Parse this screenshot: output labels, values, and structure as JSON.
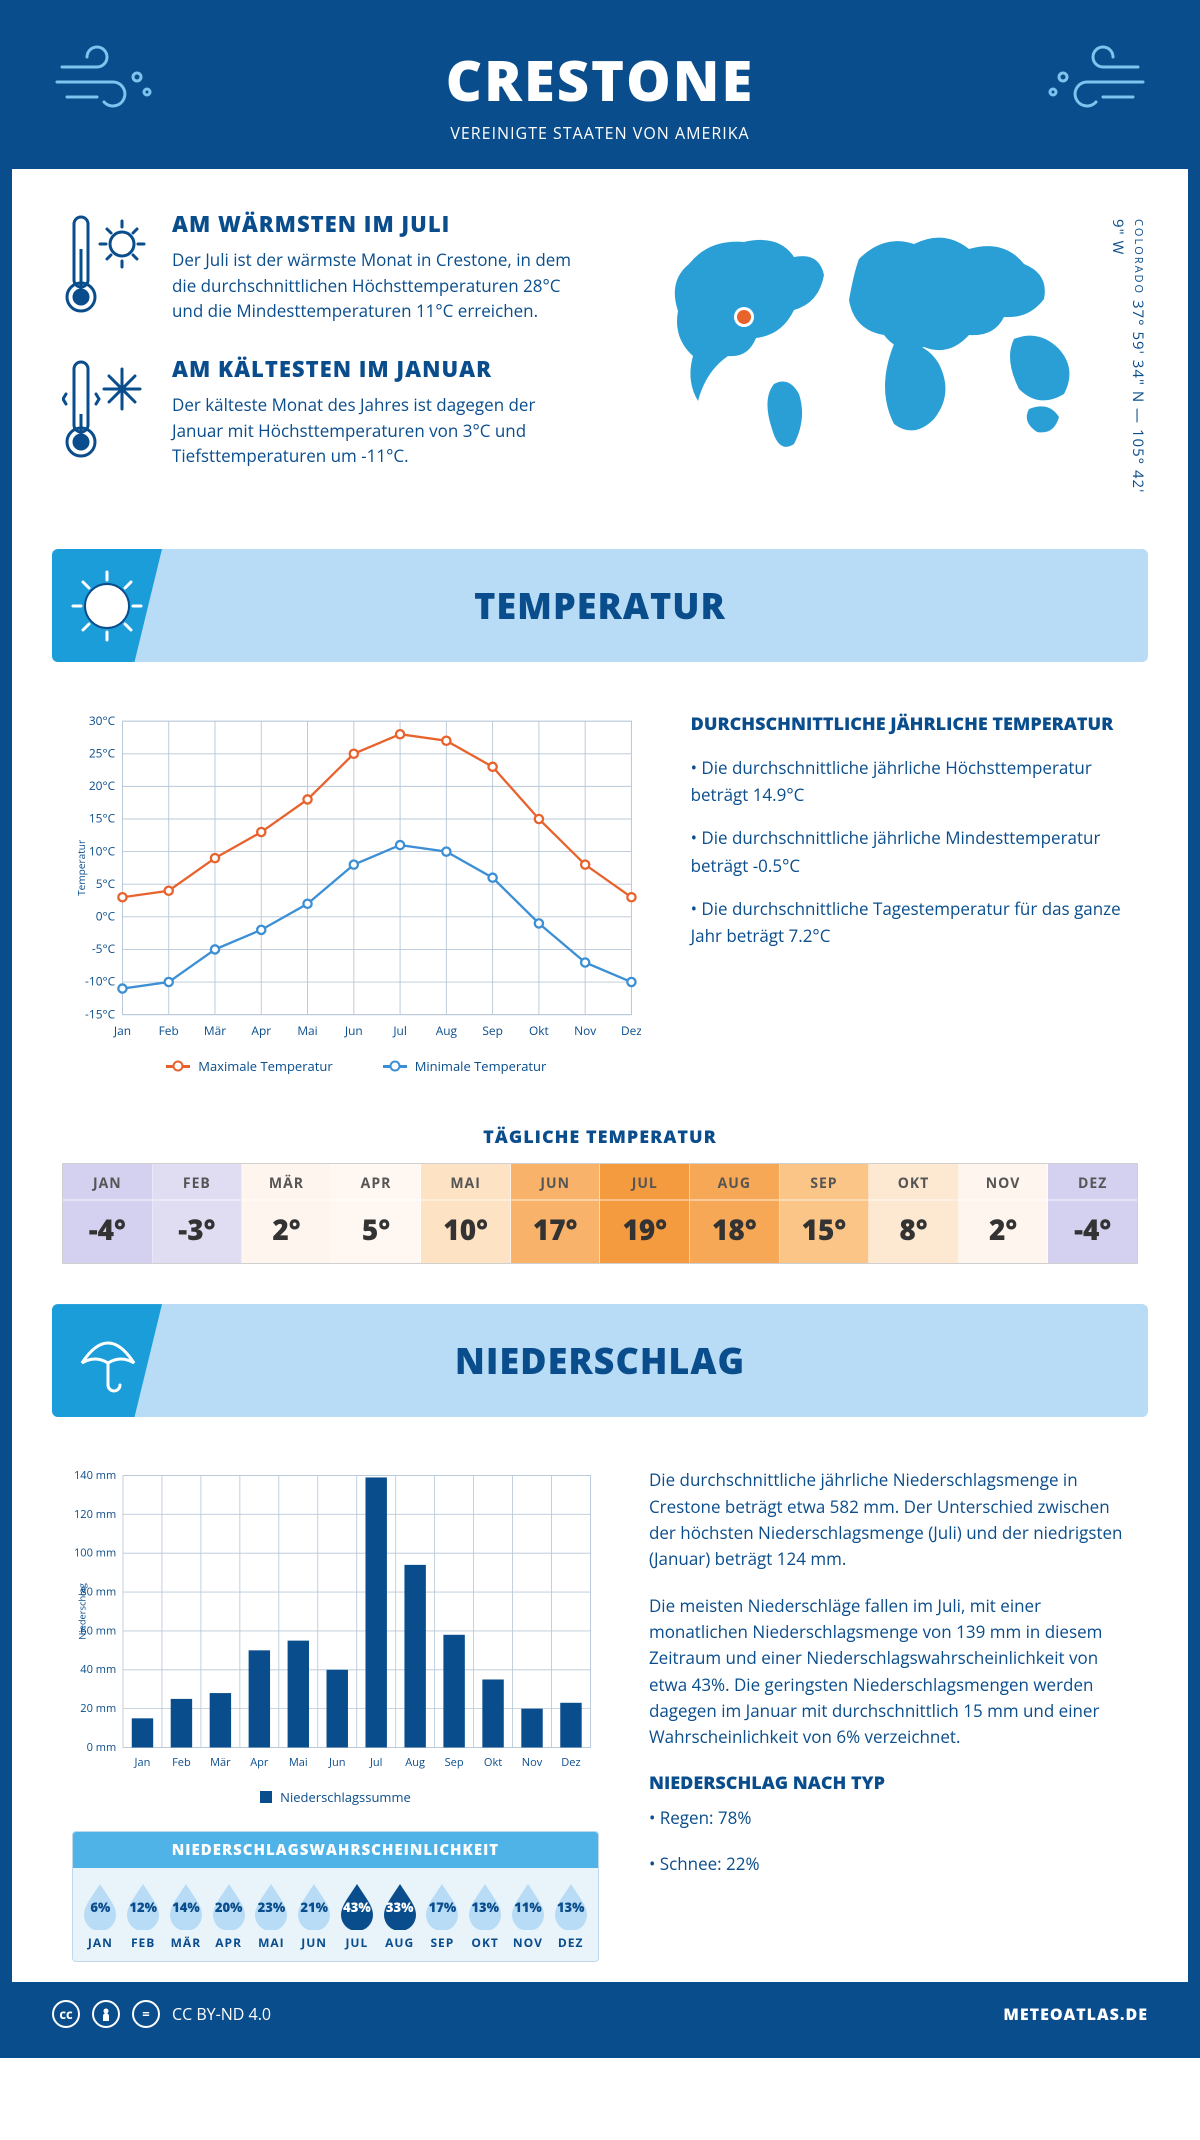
{
  "header": {
    "title": "CRESTONE",
    "subtitle": "VEREINIGTE STAATEN VON AMERIKA"
  },
  "coords": {
    "text": "37° 59' 34\" N — 105° 42' 9\" W",
    "state": "COLORADO"
  },
  "facts": {
    "warm": {
      "title": "AM WÄRMSTEN IM JULI",
      "body": "Der Juli ist der wärmste Monat in Crestone, in dem die durchschnittlichen Höchsttemperaturen 28°C und die Mindesttemperaturen 11°C erreichen."
    },
    "cold": {
      "title": "AM KÄLTESTEN IM JANUAR",
      "body": "Der kälteste Monat des Jahres ist dagegen der Januar mit Höchsttemperaturen von 3°C und Tiefsttemperaturen um -11°C."
    }
  },
  "sections": {
    "temp_title": "TEMPERATUR",
    "precip_title": "NIEDERSCHLAG"
  },
  "months": [
    "Jan",
    "Feb",
    "Mär",
    "Apr",
    "Mai",
    "Jun",
    "Jul",
    "Aug",
    "Sep",
    "Okt",
    "Nov",
    "Dez"
  ],
  "months_upper": [
    "JAN",
    "FEB",
    "MÄR",
    "APR",
    "MAI",
    "JUN",
    "JUL",
    "AUG",
    "SEP",
    "OKT",
    "NOV",
    "DEZ"
  ],
  "temp_chart": {
    "type": "line",
    "ylabel": "Temperatur",
    "ylim": [
      -15,
      30
    ],
    "ytick_step": 5,
    "series": {
      "max": {
        "label": "Maximale Temperatur",
        "color": "#e8622c",
        "values": [
          3,
          4,
          9,
          13,
          18,
          25,
          28,
          27,
          23,
          15,
          8,
          3
        ]
      },
      "min": {
        "label": "Minimale Temperatur",
        "color": "#3c8fd4",
        "values": [
          -11,
          -10,
          -5,
          -2,
          2,
          8,
          11,
          10,
          6,
          -1,
          -7,
          -10
        ]
      }
    },
    "grid_color": "#b8c8d8",
    "background": "#ffffff"
  },
  "temp_text": {
    "heading": "DURCHSCHNITTLICHE JÄHRLICHE TEMPERATUR",
    "p1": "• Die durchschnittliche jährliche Höchsttemperatur beträgt 14.9°C",
    "p2": "• Die durchschnittliche jährliche Mindesttemperatur beträgt -0.5°C",
    "p3": "• Die durchschnittliche Tagestemperatur für das ganze Jahr beträgt 7.2°C"
  },
  "daily_temp": {
    "title": "TÄGLICHE TEMPERATUR",
    "values": [
      "-4°",
      "-3°",
      "2°",
      "5°",
      "10°",
      "17°",
      "19°",
      "18°",
      "15°",
      "8°",
      "2°",
      "-4°"
    ],
    "colors": [
      "#d4d0f0",
      "#e0ddf2",
      "#fef6ee",
      "#fff8f2",
      "#fde2c4",
      "#f8b26a",
      "#f59b3f",
      "#f7a856",
      "#fac587",
      "#fde8d1",
      "#fef6ee",
      "#d4d0f0"
    ]
  },
  "precip_chart": {
    "type": "bar",
    "ylabel": "Niederschlag",
    "ylim": [
      0,
      140
    ],
    "ytick_step": 20,
    "values": [
      15,
      25,
      28,
      50,
      55,
      40,
      139,
      94,
      58,
      35,
      20,
      23
    ],
    "bar_color": "#0a4d8c",
    "grid_color": "#b8c8d8",
    "legend": "Niederschlagssumme"
  },
  "precip_text": {
    "p1": "Die durchschnittliche jährliche Niederschlagsmenge in Crestone beträgt etwa 582 mm. Der Unterschied zwischen der höchsten Niederschlagsmenge (Juli) und der niedrigsten (Januar) beträgt 124 mm.",
    "p2": "Die meisten Niederschläge fallen im Juli, mit einer monatlichen Niederschlagsmenge von 139 mm in diesem Zeitraum und einer Niederschlagswahrscheinlichkeit von etwa 43%. Die geringsten Niederschlagsmengen werden dagegen im Januar mit durchschnittlich 15 mm und einer Wahrscheinlichkeit von 6% verzeichnet.",
    "type_heading": "NIEDERSCHLAG NACH TYP",
    "type_rain": "• Regen: 78%",
    "type_snow": "• Schnee: 22%"
  },
  "prob": {
    "title": "NIEDERSCHLAGSWAHRSCHEINLICHKEIT",
    "values": [
      "6%",
      "12%",
      "14%",
      "20%",
      "23%",
      "21%",
      "43%",
      "33%",
      "17%",
      "13%",
      "11%",
      "13%"
    ],
    "fill_light": "#b8dcf5",
    "fill_dark": "#0a4d8c",
    "dark_indices": [
      6,
      7
    ]
  },
  "footer": {
    "license": "CC BY-ND 4.0",
    "site": "METEOATLAS.DE"
  },
  "colors": {
    "brand": "#0a4d8c",
    "banner_bg": "#b8dcf5",
    "banner_tab": "#1b9dd9"
  }
}
